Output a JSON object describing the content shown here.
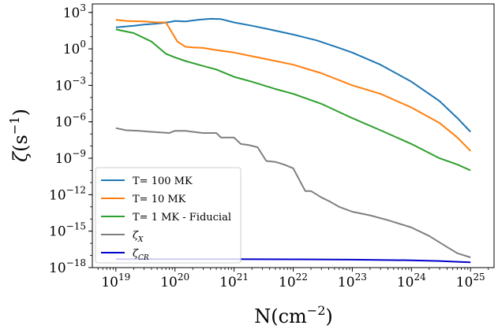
{
  "chart_data": {
    "type": "line",
    "xscale": "log",
    "yscale": "log",
    "xlabel": "N(cm⁻²)",
    "ylabel": "ζ(s⁻¹)",
    "xlim": [
      4e+18,
      2.5e+25
    ],
    "ylim": [
      1e-18,
      5000.0
    ],
    "grid": false,
    "legend_position": "lower-left",
    "x_ticks": [
      {
        "value": 1e+19,
        "base": "10",
        "exp": "19"
      },
      {
        "value": 1e+20,
        "base": "10",
        "exp": "20"
      },
      {
        "value": 1e+21,
        "base": "10",
        "exp": "21"
      },
      {
        "value": 1e+22,
        "base": "10",
        "exp": "22"
      },
      {
        "value": 1e+23,
        "base": "10",
        "exp": "23"
      },
      {
        "value": 1e+24,
        "base": "10",
        "exp": "24"
      },
      {
        "value": 1e+25,
        "base": "10",
        "exp": "25"
      }
    ],
    "y_ticks": [
      {
        "value": 1000.0,
        "base": "10",
        "exp": "3"
      },
      {
        "value": 1.0,
        "base": "10",
        "exp": "0"
      },
      {
        "value": 0.001,
        "base": "10",
        "exp": "−3"
      },
      {
        "value": 1e-06,
        "base": "10",
        "exp": "−6"
      },
      {
        "value": 1e-09,
        "base": "10",
        "exp": "−9"
      },
      {
        "value": 1e-12,
        "base": "10",
        "exp": "−12"
      },
      {
        "value": 1e-15,
        "base": "10",
        "exp": "−15"
      },
      {
        "value": 1e-18,
        "base": "10",
        "exp": "−18"
      }
    ],
    "series": [
      {
        "name": "T= 100 MK",
        "color": "#1f77b4",
        "x": [
          1e+19,
          2e+19,
          3e+19,
          5e+19,
          8e+19,
          1e+20,
          1.5e+20,
          2.5e+20,
          4e+20,
          6e+20,
          1e+21,
          2e+21,
          4e+21,
          1e+22,
          2.5e+22,
          6e+22,
          1e+23,
          3e+23,
          1e+24,
          3e+24,
          6e+24,
          1e+25
        ],
        "y": [
          60,
          80,
          100,
          120,
          160,
          200,
          180,
          250,
          300,
          280,
          150,
          80,
          40,
          15,
          5,
          1.2,
          0.5,
          0.05,
          0.002,
          5e-05,
          2e-06,
          1.5e-07
        ]
      },
      {
        "name": "T= 10 MK",
        "color": "#ff7f0e",
        "x": [
          1e+19,
          1.5e+19,
          3e+19,
          5e+19,
          7e+19,
          1.1e+20,
          1.5e+20,
          2e+20,
          3e+20,
          5e+20,
          1e+21,
          2e+21,
          5e+21,
          1e+22,
          3e+22,
          1e+23,
          3e+23,
          1e+24,
          3e+24,
          6e+24,
          1e+25
        ],
        "y": [
          250,
          200,
          180,
          150,
          150,
          4,
          1.5,
          1.3,
          1.2,
          0.8,
          0.5,
          0.25,
          0.1,
          0.05,
          0.01,
          0.001,
          0.0002,
          1.5e-05,
          8e-07,
          5e-08,
          4e-09
        ]
      },
      {
        "name": "T= 1 MK - Fiducial",
        "color": "#2ca02c",
        "x": [
          1e+19,
          2e+19,
          4e+19,
          7e+19,
          1e+20,
          1.5e+20,
          2.5e+20,
          5e+20,
          1e+21,
          2e+21,
          5e+21,
          1e+22,
          3e+22,
          1e+23,
          3e+23,
          1e+24,
          3e+24,
          6e+24,
          1e+25
        ],
        "y": [
          40,
          20,
          4,
          0.4,
          0.2,
          0.1,
          0.05,
          0.02,
          0.005,
          0.002,
          0.0005,
          0.0002,
          3e-05,
          2e-06,
          2e-07,
          1.5e-08,
          1e-09,
          3e-10,
          1e-10
        ]
      },
      {
        "name": "ζ_X",
        "color": "#7f7f7f",
        "x": [
          1e+19,
          1.5e+19,
          2.5e+19,
          4e+19,
          6e+19,
          8e+19,
          1e+20,
          1.5e+20,
          2e+20,
          3e+20,
          4e+20,
          5e+20,
          6e+20,
          8e+20,
          1e+21,
          1.3e+21,
          1.8e+21,
          2.5e+21,
          3.5e+21,
          5e+21,
          7e+21,
          1e+22,
          1.6e+22,
          2e+22,
          3e+22,
          4e+22,
          6e+22,
          1e+23,
          2e+23,
          4e+23,
          1e+24,
          2e+24,
          4e+24,
          6e+24,
          1e+25
        ],
        "y": [
          3e-07,
          2e-07,
          1.8e-07,
          1.5e-07,
          1.3e-07,
          1.2e-07,
          1.8e-07,
          1.8e-07,
          1.5e-07,
          1.2e-07,
          1.2e-07,
          1.2e-07,
          5e-08,
          5e-08,
          5e-08,
          1.5e-08,
          1.2e-08,
          8e-09,
          6e-10,
          5e-10,
          3e-10,
          1.5e-10,
          2e-12,
          2e-12,
          6e-13,
          3e-13,
          1e-13,
          4e-14,
          2e-14,
          8e-15,
          2e-15,
          4e-16,
          5e-17,
          1.5e-17,
          7e-18
        ]
      },
      {
        "name": "ζ_CR",
        "color": "#0000cc",
        "x": [
          1e+19,
          1e+20,
          1e+21,
          1e+22,
          1e+23,
          1e+24,
          3e+24,
          6e+24,
          1e+25
        ],
        "y": [
          5e-18,
          5e-18,
          5e-18,
          4.8e-18,
          4.5e-18,
          4e-18,
          3.5e-18,
          3e-18,
          2.7e-18
        ]
      }
    ],
    "legend": [
      {
        "label": "T= 100 MK"
      },
      {
        "label": "T= 10 MK"
      },
      {
        "label": "T= 1 MK - Fiducial"
      },
      {
        "label": "ζ",
        "sub": "X"
      },
      {
        "label": "ζ",
        "sub": "CR"
      }
    ]
  }
}
